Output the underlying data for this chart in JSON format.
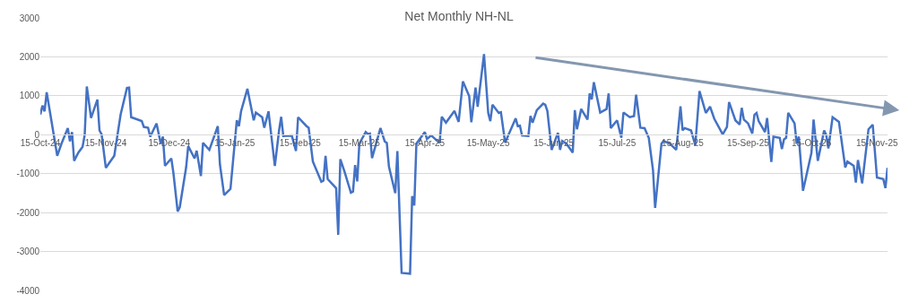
{
  "chart_data": {
    "type": "line",
    "title": "Net Monthly NH-NL",
    "series": [
      {
        "color": "#4472c4",
        "x": [
          "2024-10-15",
          "2024-10-16",
          "2024-10-17",
          "2024-10-18",
          "2024-10-23",
          "2024-10-25",
          "2024-10-28",
          "2024-10-29",
          "2024-10-30",
          "2024-10-31",
          "2024-11-02",
          "2024-11-04",
          "2024-11-05",
          "2024-11-06",
          "2024-11-08",
          "2024-11-11",
          "2024-11-12",
          "2024-11-13",
          "2024-11-15",
          "2024-11-19",
          "2024-11-22",
          "2024-11-25",
          "2024-11-26",
          "2024-11-27",
          "2024-12-02",
          "2024-12-03",
          "2024-12-05",
          "2024-12-06",
          "2024-12-09",
          "2024-12-11",
          "2024-12-12",
          "2024-12-13",
          "2024-12-16",
          "2024-12-17",
          "2024-12-19",
          "2024-12-20",
          "2024-12-23",
          "2024-12-24",
          "2024-12-27",
          "2024-12-28",
          "2024-12-30",
          "2024-12-31",
          "2025-01-03",
          "2025-01-07",
          "2025-01-08",
          "2025-01-10",
          "2025-01-13",
          "2025-01-16",
          "2025-01-17",
          "2025-01-18",
          "2025-01-21",
          "2025-01-24",
          "2025-01-25",
          "2025-01-28",
          "2025-01-29",
          "2025-01-31",
          "2025-02-03",
          "2025-02-05",
          "2025-02-06",
          "2025-02-07",
          "2025-02-11",
          "2025-02-13",
          "2025-02-14",
          "2025-02-18",
          "2025-02-19",
          "2025-02-21",
          "2025-02-25",
          "2025-02-26",
          "2025-02-27",
          "2025-02-28",
          "2025-03-04",
          "2025-03-05",
          "2025-03-06",
          "2025-03-08",
          "2025-03-11",
          "2025-03-12",
          "2025-03-13",
          "2025-03-14",
          "2025-03-15",
          "2025-03-18",
          "2025-03-19",
          "2025-03-20",
          "2025-03-21",
          "2025-03-25",
          "2025-03-27",
          "2025-03-28",
          "2025-03-29",
          "2025-04-01",
          "2025-04-02",
          "2025-04-04",
          "2025-04-08",
          "2025-04-09",
          "2025-04-10",
          "2025-04-11",
          "2025-04-15",
          "2025-04-16",
          "2025-04-18",
          "2025-04-22",
          "2025-04-23",
          "2025-04-25",
          "2025-04-29",
          "2025-05-01",
          "2025-05-03",
          "2025-05-06",
          "2025-05-07",
          "2025-05-09",
          "2025-05-10",
          "2025-05-13",
          "2025-05-15",
          "2025-05-16",
          "2025-05-17",
          "2025-05-20",
          "2025-05-21",
          "2025-05-23",
          "2025-05-28",
          "2025-05-29",
          "2025-05-30",
          "2025-05-31",
          "2025-06-03",
          "2025-06-04",
          "2025-06-05",
          "2025-06-07",
          "2025-06-10",
          "2025-06-11",
          "2025-06-12",
          "2025-06-14",
          "2025-06-17",
          "2025-06-18",
          "2025-06-19",
          "2025-06-21",
          "2025-06-24",
          "2025-06-25",
          "2025-06-26",
          "2025-06-28",
          "2025-07-01",
          "2025-07-02",
          "2025-07-03",
          "2025-07-04",
          "2025-07-07",
          "2025-07-10",
          "2025-07-11",
          "2025-07-12",
          "2025-07-15",
          "2025-07-17",
          "2025-07-18",
          "2025-07-21",
          "2025-07-23",
          "2025-07-24",
          "2025-07-26",
          "2025-07-28",
          "2025-07-30",
          "2025-08-01",
          "2025-08-02",
          "2025-08-05",
          "2025-08-06",
          "2025-08-09",
          "2025-08-12",
          "2025-08-14",
          "2025-08-15",
          "2025-08-16",
          "2025-08-19",
          "2025-08-21",
          "2025-08-23",
          "2025-08-26",
          "2025-08-28",
          "2025-08-30",
          "2025-09-03",
          "2025-09-05",
          "2025-09-06",
          "2025-09-09",
          "2025-09-11",
          "2025-09-12",
          "2025-09-13",
          "2025-09-15",
          "2025-09-17",
          "2025-09-18",
          "2025-09-19",
          "2025-09-20",
          "2025-09-23",
          "2025-09-24",
          "2025-09-26",
          "2025-09-27",
          "2025-09-30",
          "2025-10-01",
          "2025-10-02",
          "2025-10-03",
          "2025-10-04",
          "2025-10-07",
          "2025-10-08",
          "2025-10-09",
          "2025-10-11",
          "2025-10-15",
          "2025-10-16",
          "2025-10-18",
          "2025-10-21",
          "2025-10-22",
          "2025-10-23",
          "2025-10-25",
          "2025-10-28",
          "2025-10-31",
          "2025-11-01",
          "2025-11-04",
          "2025-11-05",
          "2025-11-06",
          "2025-11-08",
          "2025-11-11",
          "2025-11-13",
          "2025-11-15",
          "2025-11-18",
          "2025-11-19",
          "2025-11-20"
        ],
        "values": [
          520,
          750,
          600,
          1090,
          -540,
          -230,
          170,
          -170,
          70,
          -670,
          -460,
          -310,
          0,
          1240,
          430,
          900,
          110,
          10,
          -850,
          -540,
          520,
          1200,
          1210,
          450,
          350,
          200,
          180,
          -50,
          290,
          -230,
          -50,
          -800,
          -610,
          -990,
          -1970,
          -1860,
          -840,
          -290,
          -610,
          -410,
          -1060,
          -210,
          -390,
          220,
          -760,
          -1550,
          -1390,
          370,
          220,
          600,
          1180,
          370,
          570,
          450,
          180,
          600,
          -800,
          110,
          460,
          -30,
          -20,
          -420,
          450,
          220,
          180,
          -690,
          -1210,
          -1180,
          -540,
          -1140,
          -1370,
          -2570,
          -630,
          -950,
          -1490,
          -1460,
          -780,
          -1200,
          -230,
          70,
          20,
          30,
          -600,
          170,
          -170,
          -210,
          -820,
          -1500,
          -420,
          -3550,
          -3570,
          -1580,
          -1820,
          -230,
          70,
          -110,
          -20,
          -210,
          460,
          310,
          610,
          330,
          1370,
          990,
          320,
          1210,
          720,
          2070,
          560,
          350,
          770,
          560,
          580,
          -200,
          420,
          220,
          230,
          -20,
          -30,
          480,
          310,
          630,
          800,
          770,
          610,
          -390,
          50,
          -390,
          -160,
          -230,
          -460,
          630,
          140,
          660,
          390,
          1060,
          910,
          1350,
          570,
          660,
          1060,
          170,
          370,
          -80,
          570,
          450,
          480,
          1030,
          180,
          170,
          -80,
          -910,
          -1880,
          -230,
          -160,
          -230,
          -390,
          730,
          110,
          170,
          110,
          -270,
          1120,
          560,
          720,
          410,
          10,
          200,
          840,
          370,
          260,
          690,
          390,
          290,
          30,
          510,
          560,
          350,
          70,
          430,
          -700,
          -50,
          -80,
          -370,
          -120,
          -80,
          560,
          290,
          -230,
          -50,
          -1440,
          -460,
          390,
          -670,
          110,
          -10,
          -350,
          450,
          330,
          -840,
          -690,
          -800,
          -1230,
          -650,
          -1250,
          140,
          260,
          -1100,
          -1140,
          -1370,
          -850
        ]
      }
    ],
    "xlim": [
      "2024-10-15",
      "2025-11-20"
    ],
    "xticks": [
      {
        "value": "2024-10-15",
        "label": "15-Oct-24"
      },
      {
        "value": "2024-11-15",
        "label": "15-Nov-24"
      },
      {
        "value": "2024-12-15",
        "label": "15-Dec-24"
      },
      {
        "value": "2025-01-15",
        "label": "15-Jan-25"
      },
      {
        "value": "2025-02-15",
        "label": "15-Feb-25"
      },
      {
        "value": "2025-03-15",
        "label": "15-Mar-25"
      },
      {
        "value": "2025-04-15",
        "label": "15-Apr-25"
      },
      {
        "value": "2025-05-15",
        "label": "15-May-25"
      },
      {
        "value": "2025-06-15",
        "label": "15-Jun-25"
      },
      {
        "value": "2025-07-15",
        "label": "15-Jul-25"
      },
      {
        "value": "2025-08-15",
        "label": "15-Aug-25"
      },
      {
        "value": "2025-09-15",
        "label": "15-Sep-25"
      },
      {
        "value": "2025-10-15",
        "label": "15-Oct-25"
      },
      {
        "value": "2025-11-15",
        "label": "15-Nov-25"
      }
    ],
    "ylim": [
      -4000,
      3000
    ],
    "yticks": [
      -4000,
      -3000,
      -2000,
      -1000,
      0,
      1000,
      2000,
      3000
    ],
    "grid": "y",
    "marker": "none",
    "line_style": "solid"
  }
}
